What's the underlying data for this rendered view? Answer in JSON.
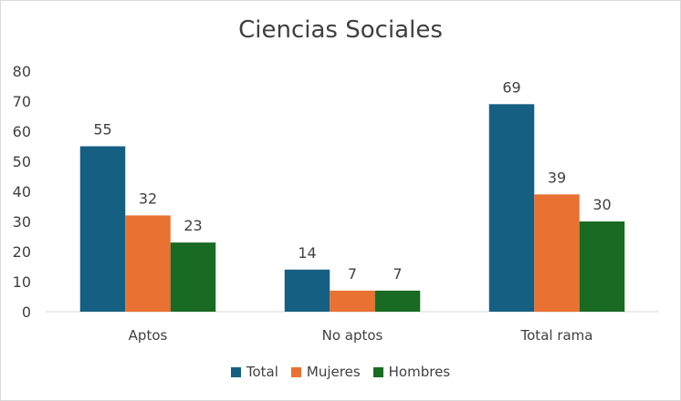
{
  "chart_data": {
    "type": "bar",
    "title": "Ciencias Sociales",
    "categories": [
      "Aptos",
      "No aptos",
      "Total rama"
    ],
    "series": [
      {
        "name": "Total",
        "values": [
          55,
          14,
          69
        ],
        "color": "#156082"
      },
      {
        "name": "Mujeres",
        "values": [
          32,
          7,
          39
        ],
        "color": "#E97132"
      },
      {
        "name": "Hombres",
        "values": [
          23,
          7,
          30
        ],
        "color": "#196B24"
      }
    ],
    "ylim": [
      0,
      80
    ],
    "yticks": [
      0,
      10,
      20,
      30,
      40,
      50,
      60,
      70,
      80
    ],
    "grid": false,
    "legend_position": "bottom"
  }
}
